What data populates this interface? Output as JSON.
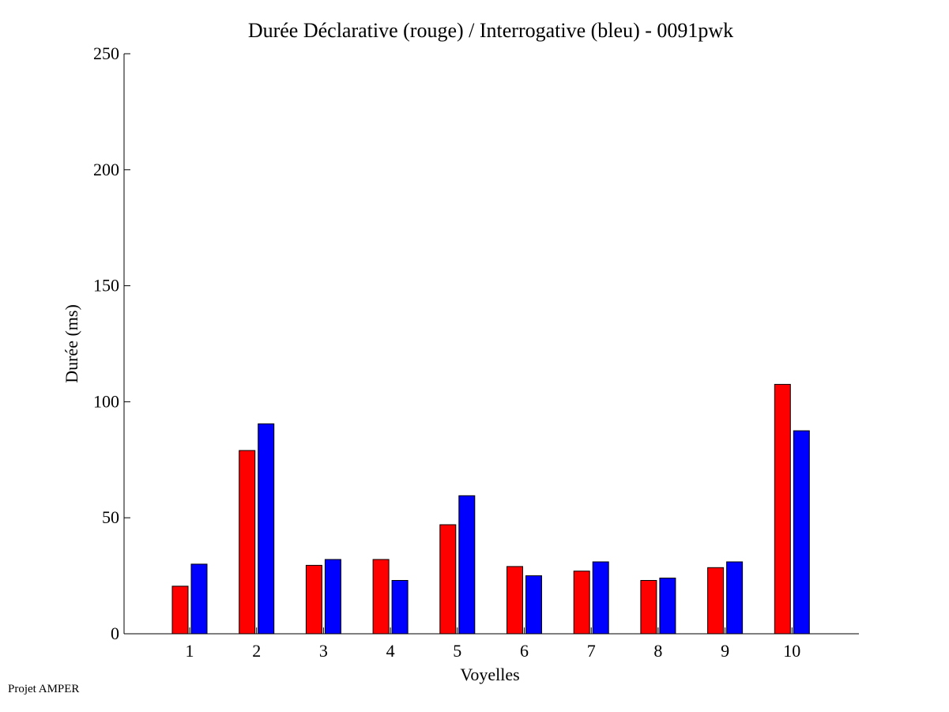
{
  "chart_data": {
    "type": "bar",
    "title": "Durée Déclarative (rouge) / Interrogative (bleu) - 0091pwk",
    "xlabel": "Voyelles",
    "ylabel": "Durée (ms)",
    "ylim": [
      0,
      250
    ],
    "yticks": [
      0,
      50,
      100,
      150,
      200,
      250
    ],
    "categories": [
      "1",
      "2",
      "3",
      "4",
      "5",
      "6",
      "7",
      "8",
      "9",
      "10"
    ],
    "series": [
      {
        "color": "#ff0000",
        "values": [
          20.5,
          79,
          29.5,
          32,
          47,
          29,
          27,
          23,
          28.5,
          107.5
        ]
      },
      {
        "color": "#0000ff",
        "values": [
          30,
          90.5,
          32,
          23,
          59.5,
          25,
          31,
          24,
          31,
          87.5
        ]
      }
    ],
    "grid": false,
    "legend": "none"
  },
  "footer": {
    "credit": "Projet AMPER"
  }
}
